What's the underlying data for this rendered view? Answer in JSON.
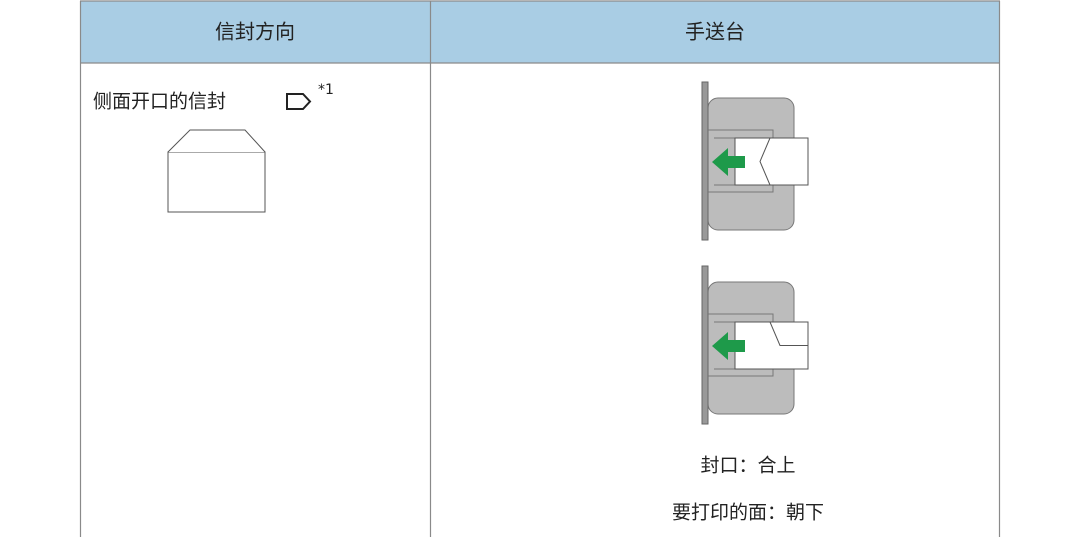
{
  "table": {
    "header": [
      "信封方向",
      "手送台"
    ],
    "rows": [
      [
        {
          "text": "侧面开口的信封",
          "note": "*1"
        },
        {
          "lines": [
            "封口：合上",
            "要打印的面：朝下"
          ]
        }
      ]
    ]
  }
}
